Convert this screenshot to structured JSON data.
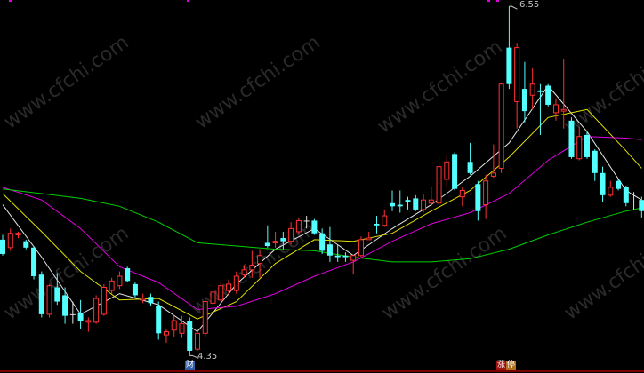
{
  "chart_data": {
    "type": "candlestick",
    "ylim": [
      4.24,
      6.59
    ],
    "grid": false,
    "colors": {
      "up": "#FF3232",
      "down": "#54FFFF",
      "flat": "#E0E0E0",
      "ma_white": "#E6E6E6",
      "ma_yellow": "#E0E000",
      "ma_magenta": "#E000E0",
      "ma_green": "#00D000",
      "background": "#000000"
    },
    "candles": [
      [
        5.08,
        5.11,
        4.98,
        4.99
      ],
      [
        5.03,
        5.15,
        5.01,
        5.12
      ],
      [
        5.11,
        5.13,
        5.09,
        5.12
      ],
      [
        5.07,
        5.08,
        5.02,
        5.03
      ],
      [
        5.03,
        5.04,
        4.83,
        4.85
      ],
      [
        4.86,
        4.88,
        4.59,
        4.61
      ],
      [
        4.61,
        4.8,
        4.59,
        4.79
      ],
      [
        4.78,
        4.87,
        4.67,
        4.69
      ],
      [
        4.73,
        4.78,
        4.55,
        4.6
      ],
      [
        4.61,
        4.69,
        4.55,
        4.61
      ],
      [
        4.62,
        4.7,
        4.52,
        4.57
      ],
      [
        4.56,
        4.59,
        4.5,
        4.57
      ],
      [
        4.56,
        4.73,
        4.55,
        4.71
      ],
      [
        4.61,
        4.8,
        4.6,
        4.78
      ],
      [
        4.76,
        4.84,
        4.74,
        4.82
      ],
      [
        4.79,
        4.88,
        4.77,
        4.85
      ],
      [
        4.9,
        4.91,
        4.81,
        4.82
      ],
      [
        4.8,
        4.81,
        4.71,
        4.73
      ],
      [
        4.7,
        4.74,
        4.68,
        4.71
      ],
      [
        4.72,
        4.74,
        4.66,
        4.68
      ],
      [
        4.66,
        4.69,
        4.45,
        4.49
      ],
      [
        4.48,
        4.52,
        4.43,
        4.5
      ],
      [
        4.51,
        4.6,
        4.47,
        4.57
      ],
      [
        4.49,
        4.6,
        4.46,
        4.55
      ],
      [
        4.57,
        4.59,
        4.35,
        4.38
      ],
      [
        4.39,
        4.52,
        4.38,
        4.49
      ],
      [
        4.49,
        4.71,
        4.47,
        4.69
      ],
      [
        4.68,
        4.77,
        4.65,
        4.75
      ],
      [
        4.7,
        4.81,
        4.69,
        4.79
      ],
      [
        4.76,
        4.83,
        4.73,
        4.8
      ],
      [
        4.76,
        4.88,
        4.74,
        4.85
      ],
      [
        4.86,
        4.92,
        4.84,
        4.89
      ],
      [
        4.89,
        5.01,
        4.84,
        4.92
      ],
      [
        4.93,
        5.02,
        4.84,
        4.98
      ],
      [
        5.06,
        5.17,
        5.03,
        5.04
      ],
      [
        5.06,
        5.13,
        5.03,
        5.07
      ],
      [
        5.09,
        5.13,
        5.02,
        5.07
      ],
      [
        5.07,
        5.19,
        5.05,
        5.15
      ],
      [
        5.13,
        5.22,
        5.12,
        5.2
      ],
      [
        5.2,
        5.23,
        5.15,
        5.2
      ],
      [
        5.2,
        5.21,
        5.11,
        5.12
      ],
      [
        5.12,
        5.15,
        4.99,
        5.01
      ],
      [
        5.05,
        5.16,
        4.94,
        4.98
      ],
      [
        4.98,
        5.05,
        4.94,
        4.97
      ],
      [
        4.98,
        5.0,
        4.94,
        4.97
      ],
      [
        4.95,
        4.98,
        4.86,
        4.98
      ],
      [
        4.98,
        5.1,
        4.97,
        5.08
      ],
      [
        5.08,
        5.13,
        5.08,
        5.09
      ],
      [
        5.18,
        5.23,
        5.12,
        5.17
      ],
      [
        5.17,
        5.27,
        5.16,
        5.23
      ],
      [
        5.31,
        5.39,
        5.26,
        5.29
      ],
      [
        5.3,
        5.39,
        5.25,
        5.29
      ],
      [
        5.33,
        5.35,
        5.27,
        5.32
      ],
      [
        5.34,
        5.36,
        5.26,
        5.27
      ],
      [
        5.27,
        5.37,
        5.25,
        5.33
      ],
      [
        5.31,
        5.41,
        5.29,
        5.33
      ],
      [
        5.31,
        5.61,
        5.3,
        5.54
      ],
      [
        5.46,
        5.61,
        5.41,
        5.57
      ],
      [
        5.62,
        5.63,
        5.39,
        5.4
      ],
      [
        5.35,
        5.41,
        5.29,
        5.39
      ],
      [
        5.57,
        5.69,
        5.49,
        5.5
      ],
      [
        5.43,
        5.45,
        5.2,
        5.26
      ],
      [
        5.3,
        5.49,
        5.21,
        5.45
      ],
      [
        5.48,
        5.68,
        5.47,
        5.5
      ],
      [
        5.53,
        6.07,
        5.5,
        6.06
      ],
      [
        6.29,
        6.55,
        6.03,
        6.06
      ],
      [
        5.95,
        6.32,
        5.78,
        6.29
      ],
      [
        6.03,
        6.2,
        5.82,
        5.89
      ],
      [
        5.99,
        6.16,
        5.9,
        6.06
      ],
      [
        6.02,
        6.06,
        5.74,
        6.01
      ],
      [
        6.05,
        6.06,
        5.92,
        5.93
      ],
      [
        5.88,
        5.97,
        5.83,
        5.93
      ],
      [
        5.89,
        6.22,
        5.78,
        5.9
      ],
      [
        5.83,
        5.85,
        5.59,
        5.6
      ],
      [
        5.59,
        5.79,
        5.58,
        5.73
      ],
      [
        5.74,
        5.76,
        5.59,
        5.6
      ],
      [
        5.64,
        5.65,
        5.45,
        5.5
      ],
      [
        5.5,
        5.54,
        5.32,
        5.36
      ],
      [
        5.36,
        5.45,
        5.35,
        5.41
      ],
      [
        5.45,
        5.46,
        5.39,
        5.4
      ],
      [
        5.41,
        5.42,
        5.29,
        5.31
      ],
      [
        5.32,
        5.38,
        5.27,
        5.32
      ],
      [
        5.33,
        5.35,
        5.22,
        5.26
      ]
    ],
    "ma_sample_index": [
      0,
      5,
      10,
      15,
      20,
      25,
      30,
      35,
      40,
      45,
      50,
      55,
      60,
      65,
      70,
      75,
      80,
      82
    ],
    "ma_lines": [
      {
        "key": "ma_white",
        "values": [
          5.3,
          4.97,
          4.61,
          4.74,
          4.67,
          4.5,
          4.8,
          5.02,
          5.15,
          4.98,
          5.15,
          5.3,
          5.48,
          5.69,
          6.05,
          5.76,
          5.39,
          5.33
        ]
      },
      {
        "key": "ma_yellow",
        "values": [
          5.37,
          5.13,
          4.88,
          4.7,
          4.71,
          4.58,
          4.69,
          4.93,
          5.08,
          5.07,
          5.12,
          5.26,
          5.39,
          5.6,
          5.85,
          5.9,
          5.64,
          5.53
        ]
      },
      {
        "key": "ma_magenta",
        "values": [
          5.41,
          5.33,
          5.15,
          4.91,
          4.81,
          4.64,
          4.66,
          4.74,
          4.85,
          4.94,
          5.07,
          5.18,
          5.25,
          5.37,
          5.58,
          5.73,
          5.72,
          5.71
        ]
      },
      {
        "key": "ma_green",
        "values": [
          5.4,
          5.37,
          5.34,
          5.29,
          5.19,
          5.06,
          5.04,
          5.02,
          5.01,
          4.97,
          4.94,
          4.94,
          4.96,
          5.02,
          5.11,
          5.19,
          5.26,
          5.28
        ]
      }
    ],
    "annotations": {
      "high_label": "6.55",
      "low_label": "4.35",
      "high_index": 65,
      "low_index": 24
    }
  },
  "badges": {
    "finance": "财",
    "limit_up_1": "涨",
    "limit_up_2": "停"
  },
  "watermark": "www.cfchi.com"
}
